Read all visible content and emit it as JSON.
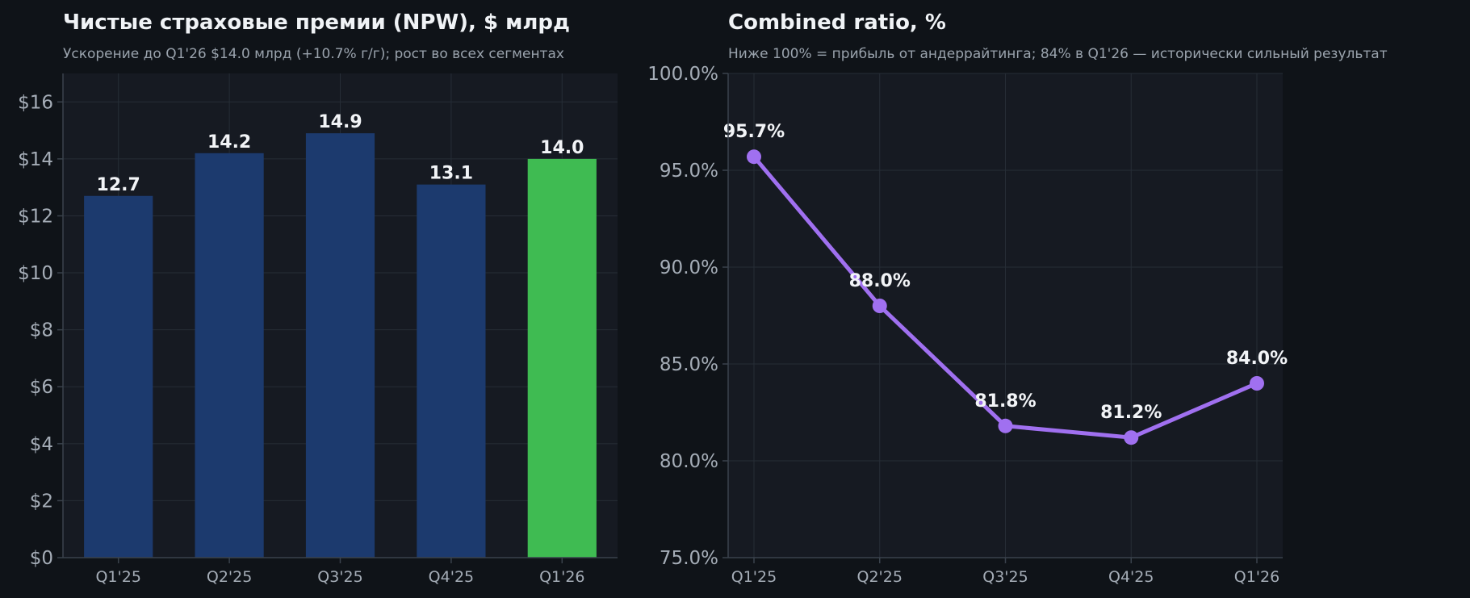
{
  "chart_data": [
    {
      "type": "bar",
      "title": "Чистые страховые премии (NPW), $ млрд",
      "subtitle": "Ускорение до Q1'26 $14.0 млрд (+10.7% г/г); рост во всех сегментах",
      "categories": [
        "Q1'25",
        "Q2'25",
        "Q3'25",
        "Q4'25",
        "Q1'26"
      ],
      "values": [
        12.7,
        14.2,
        14.9,
        13.1,
        14.0
      ],
      "value_labels": [
        "12.7",
        "14.2",
        "14.9",
        "13.1",
        "14.0"
      ],
      "yticks": [
        0,
        2,
        4,
        6,
        8,
        10,
        12,
        14,
        16
      ],
      "ytick_labels": [
        "$0",
        "$2",
        "$4",
        "$6",
        "$8",
        "$10",
        "$12",
        "$14",
        "$16"
      ],
      "ylim": [
        0,
        17
      ],
      "grid": true,
      "colors": {
        "default": "#1c3a6e",
        "highlight": "#3fbb52"
      },
      "highlight_index": 4
    },
    {
      "type": "line",
      "title": "Combined ratio, %",
      "subtitle": "Ниже 100% = прибыль от андеррайтинга; 84% в Q1'26 — исторически сильный результат",
      "categories": [
        "Q1'25",
        "Q2'25",
        "Q3'25",
        "Q4'25",
        "Q1'26"
      ],
      "values": [
        95.7,
        88.0,
        81.8,
        81.2,
        84.0
      ],
      "value_labels": [
        "95.7%",
        "88.0%",
        "81.8%",
        "81.2%",
        "84.0%"
      ],
      "yticks": [
        75,
        80,
        85,
        90,
        95,
        100
      ],
      "ytick_labels": [
        "75.0%",
        "80.0%",
        "85.0%",
        "90.0%",
        "95.0%",
        "100.0%"
      ],
      "ylim": [
        75,
        100
      ],
      "grid": true,
      "colors": {
        "line": "#a070f0"
      }
    }
  ]
}
